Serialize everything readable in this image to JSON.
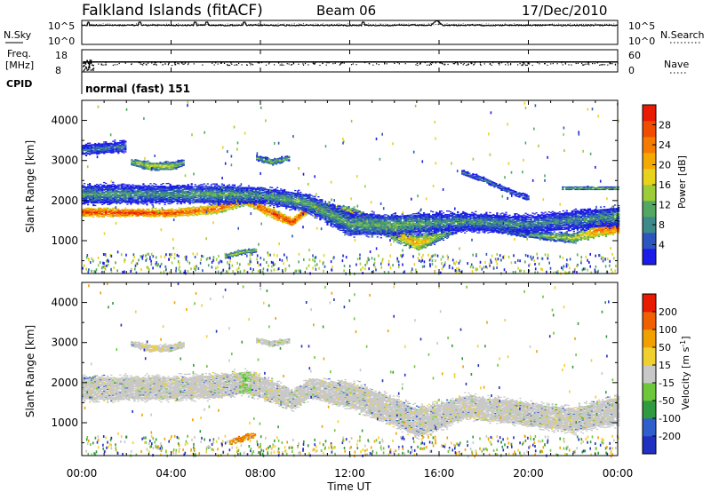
{
  "header": {
    "station": "Falkland Islands (fitACF)",
    "beam": "Beam 06",
    "date": "17/Dec/2010"
  },
  "chart_data": [
    {
      "type": "line",
      "name": "nsky-nsearch-panel",
      "left_label": "N.Sky",
      "right_label": "N.Search",
      "left_ticks": [
        "10^5",
        "10^0"
      ],
      "right_ticks": [
        "10^5",
        "10^0"
      ],
      "x_range_hours": [
        0,
        24
      ],
      "features": [
        {
          "hour": 0.3,
          "kind": "spike"
        },
        {
          "hour": 2.6,
          "kind": "spike"
        },
        {
          "hour": 5.1,
          "kind": "spike"
        },
        {
          "hour": 5.6,
          "kind": "spike"
        },
        {
          "hour": 7.3,
          "kind": "spike"
        },
        {
          "hour": 12.6,
          "kind": "spike"
        },
        {
          "hour": 15.9,
          "kind": "peak"
        }
      ]
    },
    {
      "type": "line",
      "name": "freq-nave-panel",
      "left_label": "Freq.",
      "left_unit": "[MHz]",
      "right_label": "Nave",
      "left_ticks": [
        18,
        8
      ],
      "right_ticks": [
        60,
        0
      ],
      "x_range_hours": [
        0,
        24
      ],
      "freq_level_mhz": 12.5,
      "cpid_label": "CPID",
      "cpid_text": "normal (fast) 151"
    },
    {
      "type": "heatmap",
      "name": "power",
      "ylabel": "Slant Range [km]",
      "ylim": [
        180,
        4500
      ],
      "yticks": [
        1000,
        2000,
        3000,
        4000
      ],
      "x_range_hours": [
        0,
        24
      ],
      "colorbar": {
        "label": "Power [dB]",
        "range": [
          0,
          32
        ],
        "ticks": [
          4,
          8,
          12,
          16,
          20,
          24,
          28
        ],
        "colors": [
          "#1c1ce8",
          "#2c55c0",
          "#3e8a8a",
          "#52a860",
          "#9ccc38",
          "#e8d21c",
          "#f5a800",
          "#f57a00",
          "#f04c00",
          "#e81a00"
        ]
      },
      "bands": [
        {
          "hours": [
            0.0,
            2.0,
            4.0,
            6.0,
            7.3,
            8.4,
            9.4,
            10.2,
            12.2,
            14.0,
            15.0,
            16.0,
            17.2,
            20.0,
            22.0,
            23.0,
            24.0
          ],
          "center_km": [
            1700,
            1690,
            1680,
            1780,
            2000,
            1700,
            1450,
            1850,
            1650,
            1180,
            920,
            1120,
            1400,
            1150,
            1050,
            1250,
            1350
          ],
          "half_width_km": [
            100,
            90,
            90,
            100,
            110,
            110,
            90,
            110,
            140,
            160,
            170,
            130,
            80,
            80,
            110,
            150,
            170
          ],
          "mean_db": [
            28,
            29,
            28,
            26,
            24,
            28,
            30,
            24,
            19,
            20,
            22,
            14,
            11,
            12,
            16,
            24,
            28
          ]
        },
        {
          "hours": [
            0.0,
            4.0,
            6.0,
            8.0,
            10.0,
            12.0,
            14.0,
            16.0,
            18.0,
            20.0,
            22.0,
            24.0
          ],
          "center_km": [
            2150,
            2150,
            2150,
            2120,
            1950,
            1400,
            1380,
            1450,
            1450,
            1400,
            1500,
            1600
          ],
          "half_width_km": [
            220,
            200,
            210,
            190,
            200,
            260,
            240,
            210,
            200,
            200,
            210,
            220
          ],
          "mean_db": [
            10,
            10,
            11,
            10,
            12,
            11,
            12,
            10,
            10,
            9,
            9,
            10
          ]
        },
        {
          "hours": [
            2.2,
            3.0,
            4.0,
            4.6
          ],
          "center_km": [
            2950,
            2850,
            2850,
            2950
          ],
          "half_width_km": [
            80,
            90,
            90,
            80
          ],
          "mean_db": [
            14,
            17,
            16,
            12
          ]
        },
        {
          "hours": [
            7.8,
            8.5,
            9.3
          ],
          "center_km": [
            3050,
            2950,
            3050
          ],
          "half_width_km": [
            60,
            70,
            60
          ],
          "mean_db": [
            11,
            14,
            11
          ]
        },
        {
          "hours": [
            6.4,
            7.1,
            7.8
          ],
          "center_km": [
            600,
            700,
            760
          ],
          "half_width_km": [
            50,
            60,
            50
          ],
          "mean_db": [
            14,
            16,
            14
          ]
        },
        {
          "hours": [
            0.0,
            2.0
          ],
          "center_km": [
            3250,
            3350
          ],
          "half_width_km": [
            120,
            130
          ],
          "mean_db": [
            8,
            8
          ]
        },
        {
          "hours": [
            17.0,
            18.0,
            19.0,
            20.0
          ],
          "center_km": [
            2700,
            2500,
            2250,
            2050
          ],
          "half_width_km": [
            50,
            60,
            60,
            60
          ],
          "mean_db": [
            8,
            9,
            8,
            8
          ]
        },
        {
          "hours": [
            21.5,
            23.2,
            24.0
          ],
          "center_km": [
            2300,
            2300,
            2300
          ],
          "half_width_km": [
            40,
            40,
            40
          ],
          "mean_db": [
            12,
            14,
            12
          ]
        }
      ]
    },
    {
      "type": "heatmap",
      "name": "velocity",
      "ylabel": "Slant Range [km]",
      "ylim": [
        180,
        4500
      ],
      "yticks": [
        1000,
        2000,
        3000,
        4000
      ],
      "xticks": [
        "00:00",
        "04:00",
        "08:00",
        "12:00",
        "16:00",
        "20:00",
        "00:00"
      ],
      "xlabel": "Time UT",
      "x_range_hours": [
        0,
        24
      ],
      "colorbar": {
        "label": "Velocity [m s^-1]",
        "ticks": [
          200,
          100,
          50,
          15,
          -15,
          -50,
          -100,
          -200
        ],
        "colors": [
          "#2030c0",
          "#2f5fcc",
          "#2f9a40",
          "#6cc83a",
          "#c8c8c8",
          "#f0d030",
          "#f0a000",
          "#f06000",
          "#e81a00"
        ]
      },
      "bands": [
        {
          "hours": [
            0.0,
            2.0,
            4.0,
            6.0,
            7.3,
            8.4,
            9.4,
            10.2,
            12.2,
            14.0,
            15.0,
            16.0,
            17.2,
            20.0,
            22.0,
            23.0,
            24.0
          ],
          "center_km": [
            1850,
            1850,
            1850,
            1900,
            2000,
            1800,
            1550,
            1850,
            1650,
            1250,
            1000,
            1150,
            1400,
            1200,
            1050,
            1200,
            1300
          ],
          "half_width_km": [
            280,
            260,
            260,
            270,
            260,
            250,
            220,
            230,
            300,
            320,
            330,
            300,
            260,
            270,
            280,
            300,
            320
          ],
          "mean_ms": [
            -5,
            -5,
            -6,
            -5,
            8,
            -5,
            0,
            -5,
            -5,
            -5,
            -5,
            -5,
            -5,
            -5,
            -5,
            -5,
            -5
          ]
        },
        {
          "hours": [
            6.6,
            7.2,
            7.8
          ],
          "center_km": [
            500,
            600,
            700
          ],
          "half_width_km": [
            60,
            70,
            60
          ],
          "mean_ms": [
            -100,
            -120,
            -100
          ]
        },
        {
          "hours": [
            2.2,
            3.0,
            4.0,
            4.6
          ],
          "center_km": [
            2950,
            2850,
            2850,
            2950
          ],
          "half_width_km": [
            70,
            80,
            80,
            70
          ],
          "mean_ms": [
            -5,
            -30,
            -5,
            -5
          ]
        },
        {
          "hours": [
            7.8,
            8.5,
            9.3
          ],
          "center_km": [
            3050,
            2950,
            3050
          ],
          "half_width_km": [
            60,
            70,
            60
          ],
          "mean_ms": [
            -5,
            -5,
            -5
          ]
        }
      ]
    }
  ]
}
